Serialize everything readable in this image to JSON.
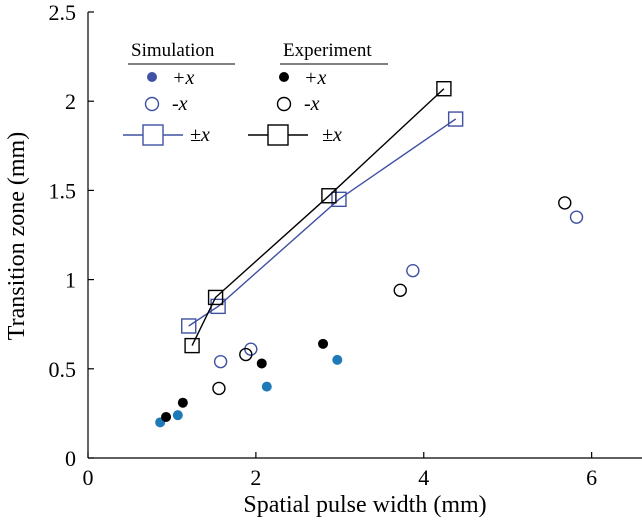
{
  "chart_data": {
    "type": "scatter",
    "xlabel": "Spatial pulse width (mm)",
    "ylabel": "Transition zone (mm)",
    "xlim": [
      0,
      6.6
    ],
    "ylim": [
      0,
      2.5
    ],
    "xticks": [
      0,
      2,
      4,
      6
    ],
    "yticks": [
      0,
      0.5,
      1,
      1.5,
      2,
      2.5
    ],
    "xtick_labels": [
      "0",
      "2",
      "4",
      "6"
    ],
    "ytick_labels": [
      "0",
      "0.5",
      "1",
      "1.5",
      "2",
      "2.5"
    ],
    "grid": false,
    "legend_position": "top-left",
    "legend": {
      "simulation_header": "Simulation",
      "experiment_header": "Experiment",
      "plus_label": "+x",
      "minus_label": "-x",
      "pm_label": "±x"
    },
    "colors": {
      "simulation": "#3f51a3",
      "simulation_filled": "#1f7ab8",
      "experiment": "#000000"
    },
    "series": [
      {
        "group": "simulation",
        "variant": "+x",
        "marker": "filled-circle",
        "points": [
          [
            0.86,
            0.2
          ],
          [
            1.07,
            0.24
          ],
          [
            2.13,
            0.4
          ],
          [
            2.97,
            0.55
          ]
        ]
      },
      {
        "group": "simulation",
        "variant": "-x",
        "marker": "open-circle",
        "points": [
          [
            1.58,
            0.54
          ],
          [
            1.94,
            0.61
          ],
          [
            3.87,
            1.05
          ],
          [
            5.82,
            1.35
          ]
        ]
      },
      {
        "group": "simulation",
        "variant": "±x",
        "marker": "open-square-line",
        "points": [
          [
            1.2,
            0.74
          ],
          [
            1.55,
            0.85
          ],
          [
            2.99,
            1.45
          ],
          [
            4.38,
            1.9
          ]
        ]
      },
      {
        "group": "experiment",
        "variant": "+x",
        "marker": "filled-circle",
        "points": [
          [
            0.93,
            0.23
          ],
          [
            1.13,
            0.31
          ],
          [
            2.07,
            0.53
          ],
          [
            2.8,
            0.64
          ]
        ]
      },
      {
        "group": "experiment",
        "variant": "-x",
        "marker": "open-circle",
        "points": [
          [
            1.56,
            0.39
          ],
          [
            1.88,
            0.58
          ],
          [
            3.72,
            0.94
          ],
          [
            5.68,
            1.43
          ]
        ]
      },
      {
        "group": "experiment",
        "variant": "±x",
        "marker": "open-square-line",
        "points": [
          [
            1.24,
            0.63
          ],
          [
            1.52,
            0.9
          ],
          [
            2.87,
            1.47
          ],
          [
            4.24,
            2.07
          ]
        ]
      }
    ]
  }
}
